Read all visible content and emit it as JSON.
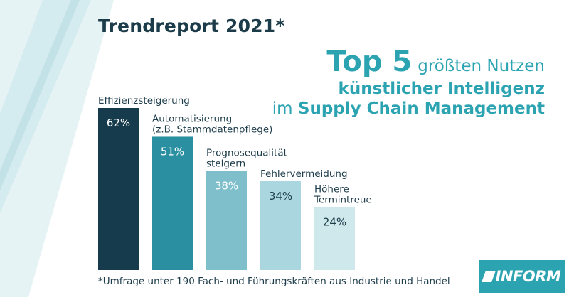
{
  "header": {
    "report_title": "Trendreport 2021*",
    "top5": "Top 5",
    "line1_rest": "größten Nutzen",
    "line2": "künstlicher Intelligenz",
    "line3_prefix": "im",
    "line3_bold": "Supply Chain Management"
  },
  "chart_data": {
    "type": "bar",
    "title": "",
    "xlabel": "",
    "ylabel": "",
    "categories": [
      [
        "Effizienzsteigerung"
      ],
      [
        "Automatisierung",
        "(z.B. Stammdatenpflege)"
      ],
      [
        "Prognosequalität",
        "steigern"
      ],
      [
        "Fehlervermeidung"
      ],
      [
        "Höhere",
        "Termintreue"
      ]
    ],
    "values": [
      62,
      51,
      38,
      34,
      24
    ],
    "value_labels": [
      "62%",
      "51%",
      "38%",
      "34%",
      "24%"
    ],
    "bar_colors": [
      "#163b4c",
      "#2a8fa0",
      "#7fbfcc",
      "#a9d6df",
      "#cfe8ec"
    ],
    "value_colors": [
      "#ffffff",
      "#ffffff",
      "#ffffff",
      "#1d3c4a",
      "#1d3c4a"
    ],
    "ylim": [
      0,
      62
    ],
    "grid": false,
    "legend": "none"
  },
  "footnote": "*Umfrage unter 190 Fach- und Führungskräften aus Industrie und Handel",
  "logo": {
    "text": "INFORM"
  },
  "colors": {
    "accent": "#2ba3b1",
    "dark": "#1d3c4a"
  }
}
